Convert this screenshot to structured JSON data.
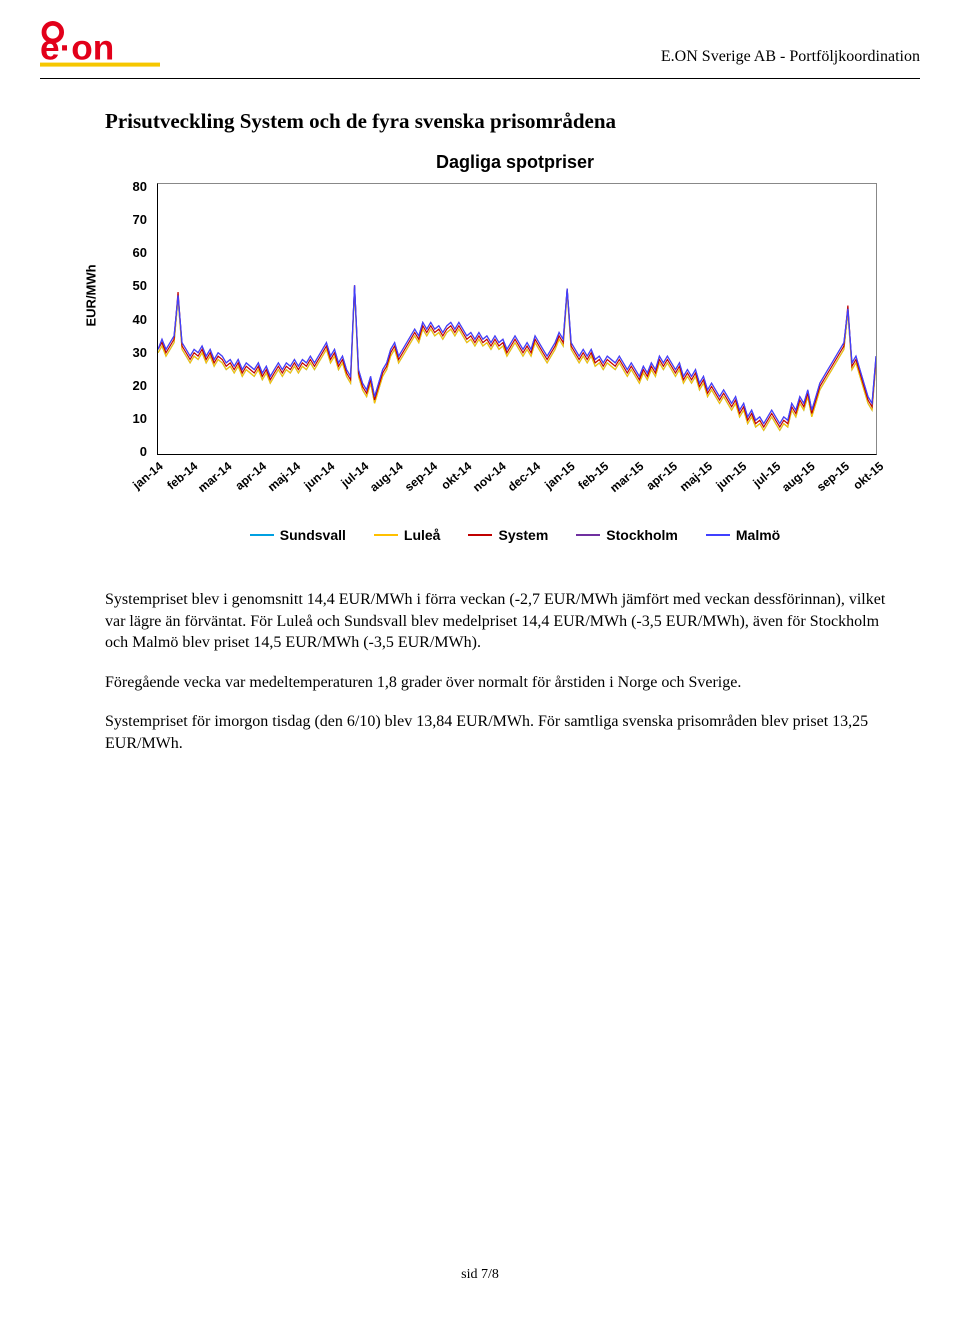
{
  "header": {
    "company_text": "E.ON Sverige AB - Portföljkoordination",
    "logo_color_red": "#e2001a",
    "logo_color_yellow": "#f6c700"
  },
  "section_title": "Prisutveckling System och de fyra svenska prisområdena",
  "chart": {
    "type": "line",
    "title": "Dagliga spotpriser",
    "ylabel": "EUR/MWh",
    "ylim": [
      0,
      80
    ],
    "ytick_step": 10,
    "yticks": [
      "80",
      "70",
      "60",
      "50",
      "40",
      "30",
      "20",
      "10",
      "0"
    ],
    "x_categories": [
      "jan-14",
      "feb-14",
      "mar-14",
      "apr-14",
      "maj-14",
      "jun-14",
      "jul-14",
      "aug-14",
      "sep-14",
      "okt-14",
      "nov-14",
      "dec-14",
      "jan-15",
      "feb-15",
      "mar-15",
      "apr-15",
      "maj-15",
      "jun-15",
      "jul-15",
      "aug-15",
      "sep-15",
      "okt-15"
    ],
    "background_color": "#ffffff",
    "border_color": "#888888",
    "axis_color": "#000000",
    "line_width": 1.2,
    "series": [
      {
        "name": "Sundsvall",
        "color": "#00a0e1"
      },
      {
        "name": "Luleå",
        "color": "#ffc000"
      },
      {
        "name": "System",
        "color": "#c00000"
      },
      {
        "name": "Stockholm",
        "color": "#7030a0"
      },
      {
        "name": "Malmö",
        "color": "#4040ff"
      }
    ],
    "data_note": "Daily spot prices Jan-14 to Oct-15; series overlap heavily. Approximate envelope: range ~8-49 EUR/MWh; Jan-Apr 14 ~28-48 with spikes to 48; May-Jul 14 ~20-36 with dips to 14; Aug-Oct 14 ~30-40; Nov-14-Jan-15 ~28-40 with spike to 49 early Jan-15; Feb-Apr 15 ~22-36; May-Jul 15 falling 20→8; Aug-15 low ~8-20; Sep-15 rising 12→33 with spike ~44; early Oct-15 ~13-28.",
    "approx_values": {
      "x_points": [
        0,
        1,
        2,
        3,
        4,
        5,
        6,
        7,
        8,
        9,
        10,
        11,
        12,
        13,
        14,
        15,
        16,
        17,
        18,
        19,
        20,
        21,
        22,
        23,
        24,
        25,
        26,
        27,
        28,
        29,
        30,
        31,
        32,
        33,
        34,
        35,
        36,
        37,
        38,
        39,
        40,
        41,
        42,
        43,
        44,
        45,
        46,
        47,
        48,
        49,
        50,
        51,
        52,
        53,
        54,
        55,
        56,
        57,
        58,
        59,
        60,
        61,
        62,
        63,
        64,
        65,
        66,
        67,
        68,
        69,
        70,
        71,
        72,
        73,
        74,
        75,
        76,
        77,
        78,
        79,
        80,
        81,
        82,
        83,
        84,
        85,
        86,
        87,
        88,
        89,
        90,
        91,
        92,
        93,
        94,
        95,
        96,
        97,
        98,
        99,
        100,
        101,
        102,
        103,
        104,
        105,
        106,
        107,
        108,
        109,
        110,
        111,
        112,
        113,
        114,
        115,
        116,
        117,
        118,
        119,
        120,
        121,
        122,
        123,
        124,
        125,
        126,
        127,
        128,
        129,
        130,
        131,
        132,
        133,
        134,
        135,
        136,
        137,
        138,
        139,
        140,
        141,
        142,
        143,
        144,
        145,
        146,
        147,
        148,
        149,
        150,
        151,
        152,
        153,
        154,
        155,
        156,
        157,
        158,
        159,
        160,
        161,
        162,
        163,
        164,
        165,
        166,
        167,
        168,
        169,
        170,
        171,
        172,
        173,
        174,
        175,
        176,
        177,
        178,
        179
      ],
      "System": [
        31,
        33,
        30,
        32,
        34,
        48,
        32,
        30,
        28,
        30,
        29,
        31,
        28,
        30,
        27,
        29,
        28,
        26,
        27,
        25,
        27,
        24,
        26,
        25,
        24,
        26,
        23,
        25,
        22,
        24,
        26,
        24,
        26,
        25,
        27,
        25,
        27,
        26,
        28,
        26,
        28,
        30,
        32,
        28,
        30,
        26,
        28,
        24,
        22,
        50,
        24,
        20,
        18,
        22,
        16,
        20,
        24,
        26,
        30,
        32,
        28,
        30,
        32,
        34,
        36,
        34,
        38,
        36,
        38,
        36,
        37,
        35,
        37,
        38,
        36,
        38,
        36,
        34,
        35,
        33,
        35,
        33,
        34,
        32,
        34,
        32,
        33,
        30,
        32,
        34,
        32,
        30,
        32,
        30,
        34,
        32,
        30,
        28,
        30,
        32,
        35,
        33,
        49,
        32,
        30,
        28,
        30,
        28,
        30,
        27,
        28,
        26,
        28,
        27,
        26,
        28,
        26,
        24,
        26,
        24,
        22,
        25,
        23,
        26,
        24,
        28,
        26,
        28,
        26,
        24,
        26,
        22,
        24,
        22,
        24,
        20,
        22,
        18,
        20,
        18,
        16,
        18,
        16,
        14,
        16,
        12,
        14,
        10,
        12,
        9,
        10,
        8,
        10,
        12,
        10,
        8,
        10,
        9,
        14,
        12,
        16,
        14,
        18,
        12,
        16,
        20,
        22,
        24,
        26,
        28,
        30,
        32,
        44,
        26,
        28,
        24,
        20,
        16,
        14,
        28
      ],
      "Stockholm": [
        31,
        34,
        31,
        33,
        35,
        47,
        33,
        31,
        29,
        31,
        30,
        32,
        29,
        31,
        28,
        30,
        29,
        27,
        28,
        26,
        28,
        25,
        27,
        26,
        25,
        27,
        24,
        26,
        23,
        25,
        27,
        25,
        27,
        26,
        28,
        26,
        28,
        27,
        29,
        27,
        29,
        31,
        33,
        29,
        31,
        27,
        29,
        25,
        23,
        50,
        25,
        21,
        19,
        23,
        17,
        21,
        25,
        27,
        31,
        33,
        29,
        31,
        33,
        35,
        37,
        35,
        39,
        37,
        39,
        37,
        38,
        36,
        38,
        39,
        37,
        39,
        37,
        35,
        36,
        34,
        36,
        34,
        35,
        33,
        35,
        33,
        34,
        31,
        33,
        35,
        33,
        31,
        33,
        31,
        35,
        33,
        31,
        29,
        31,
        33,
        36,
        34,
        49,
        33,
        31,
        29,
        31,
        29,
        31,
        28,
        29,
        27,
        29,
        28,
        27,
        29,
        27,
        25,
        27,
        25,
        23,
        26,
        24,
        27,
        25,
        29,
        27,
        29,
        27,
        25,
        27,
        23,
        25,
        23,
        25,
        21,
        23,
        19,
        21,
        19,
        17,
        19,
        17,
        15,
        17,
        13,
        15,
        11,
        13,
        10,
        11,
        9,
        11,
        13,
        11,
        9,
        11,
        10,
        15,
        13,
        17,
        15,
        19,
        13,
        17,
        21,
        23,
        25,
        27,
        29,
        31,
        33,
        43,
        27,
        29,
        25,
        21,
        17,
        15,
        29
      ],
      "Malmö": [
        31,
        34,
        31,
        33,
        35,
        47,
        33,
        31,
        29,
        31,
        30,
        32,
        29,
        31,
        28,
        30,
        29,
        27,
        28,
        26,
        28,
        25,
        27,
        26,
        25,
        27,
        24,
        26,
        23,
        25,
        27,
        25,
        27,
        26,
        28,
        26,
        28,
        27,
        29,
        27,
        29,
        31,
        33,
        29,
        31,
        27,
        29,
        25,
        23,
        50,
        25,
        21,
        19,
        23,
        17,
        21,
        25,
        27,
        31,
        33,
        29,
        31,
        33,
        35,
        37,
        35,
        39,
        37,
        39,
        37,
        38,
        36,
        38,
        39,
        37,
        39,
        37,
        35,
        36,
        34,
        36,
        34,
        35,
        33,
        35,
        33,
        34,
        31,
        33,
        35,
        33,
        31,
        33,
        31,
        35,
        33,
        31,
        29,
        31,
        33,
        36,
        34,
        49,
        33,
        31,
        29,
        31,
        29,
        31,
        28,
        29,
        27,
        29,
        28,
        27,
        29,
        27,
        25,
        27,
        25,
        23,
        26,
        24,
        27,
        25,
        29,
        27,
        29,
        27,
        25,
        27,
        23,
        25,
        23,
        25,
        21,
        23,
        19,
        21,
        19,
        17,
        19,
        17,
        15,
        17,
        13,
        15,
        11,
        13,
        10,
        11,
        9,
        11,
        13,
        11,
        9,
        11,
        10,
        15,
        13,
        17,
        15,
        19,
        13,
        17,
        21,
        23,
        25,
        27,
        29,
        31,
        33,
        43,
        27,
        29,
        25,
        21,
        17,
        15,
        29
      ],
      "Sundsvall": [
        30,
        32,
        29,
        31,
        33,
        46,
        31,
        29,
        27,
        29,
        28,
        30,
        27,
        29,
        26,
        28,
        27,
        25,
        26,
        24,
        26,
        23,
        25,
        24,
        23,
        25,
        22,
        24,
        21,
        23,
        25,
        23,
        25,
        24,
        26,
        24,
        26,
        25,
        27,
        25,
        27,
        29,
        31,
        27,
        29,
        25,
        27,
        23,
        21,
        49,
        23,
        19,
        17,
        21,
        15,
        19,
        23,
        25,
        29,
        31,
        27,
        29,
        31,
        33,
        35,
        33,
        37,
        35,
        37,
        35,
        36,
        34,
        36,
        37,
        35,
        37,
        35,
        33,
        34,
        32,
        34,
        32,
        33,
        31,
        33,
        31,
        32,
        29,
        31,
        33,
        31,
        29,
        31,
        29,
        33,
        31,
        29,
        27,
        29,
        31,
        34,
        32,
        48,
        31,
        29,
        27,
        29,
        27,
        29,
        26,
        27,
        25,
        27,
        26,
        25,
        27,
        25,
        23,
        25,
        23,
        21,
        24,
        22,
        25,
        23,
        27,
        25,
        27,
        25,
        23,
        25,
        21,
        23,
        21,
        23,
        19,
        21,
        17,
        19,
        17,
        15,
        17,
        15,
        13,
        15,
        11,
        13,
        9,
        11,
        8,
        9,
        7,
        9,
        11,
        9,
        7,
        9,
        8,
        13,
        11,
        15,
        13,
        17,
        11,
        15,
        19,
        21,
        23,
        25,
        27,
        29,
        31,
        42,
        25,
        27,
        23,
        19,
        15,
        13,
        27
      ],
      "Luleå": [
        30,
        32,
        29,
        31,
        33,
        46,
        31,
        29,
        27,
        29,
        28,
        30,
        27,
        29,
        26,
        28,
        27,
        25,
        26,
        24,
        26,
        23,
        25,
        24,
        23,
        25,
        22,
        24,
        21,
        23,
        25,
        23,
        25,
        24,
        26,
        24,
        26,
        25,
        27,
        25,
        27,
        29,
        31,
        27,
        29,
        25,
        27,
        23,
        21,
        49,
        23,
        19,
        17,
        21,
        15,
        19,
        23,
        25,
        29,
        31,
        27,
        29,
        31,
        33,
        35,
        33,
        37,
        35,
        37,
        35,
        36,
        34,
        36,
        37,
        35,
        37,
        35,
        33,
        34,
        32,
        34,
        32,
        33,
        31,
        33,
        31,
        32,
        29,
        31,
        33,
        31,
        29,
        31,
        29,
        33,
        31,
        29,
        27,
        29,
        31,
        34,
        32,
        48,
        31,
        29,
        27,
        29,
        27,
        29,
        26,
        27,
        25,
        27,
        26,
        25,
        27,
        25,
        23,
        25,
        23,
        21,
        24,
        22,
        25,
        23,
        27,
        25,
        27,
        25,
        23,
        25,
        21,
        23,
        21,
        23,
        19,
        21,
        17,
        19,
        17,
        15,
        17,
        15,
        13,
        15,
        11,
        13,
        9,
        11,
        8,
        9,
        7,
        9,
        11,
        9,
        7,
        9,
        8,
        13,
        11,
        15,
        13,
        17,
        11,
        15,
        19,
        21,
        23,
        25,
        27,
        29,
        31,
        42,
        25,
        27,
        23,
        19,
        15,
        13,
        27
      ]
    }
  },
  "paragraphs": {
    "p1": "Systempriset blev i genomsnitt 14,4 EUR/MWh i förra veckan (-2,7 EUR/MWh jämfört med veckan dessförinnan), vilket var lägre än förväntat. För Luleå och Sundsvall blev medelpriset 14,4 EUR/MWh (-3,5 EUR/MWh), även för Stockholm och Malmö blev priset 14,5 EUR/MWh (-3,5 EUR/MWh).",
    "p2": "Föregående vecka var medeltemperaturen 1,8 grader över normalt för årstiden i Norge och Sverige.",
    "p3": "Systempriset för imorgon tisdag (den 6/10) blev 13,84 EUR/MWh. För samtliga svenska prisområden blev priset 13,25 EUR/MWh."
  },
  "footer": {
    "page": "sid 7/8"
  }
}
